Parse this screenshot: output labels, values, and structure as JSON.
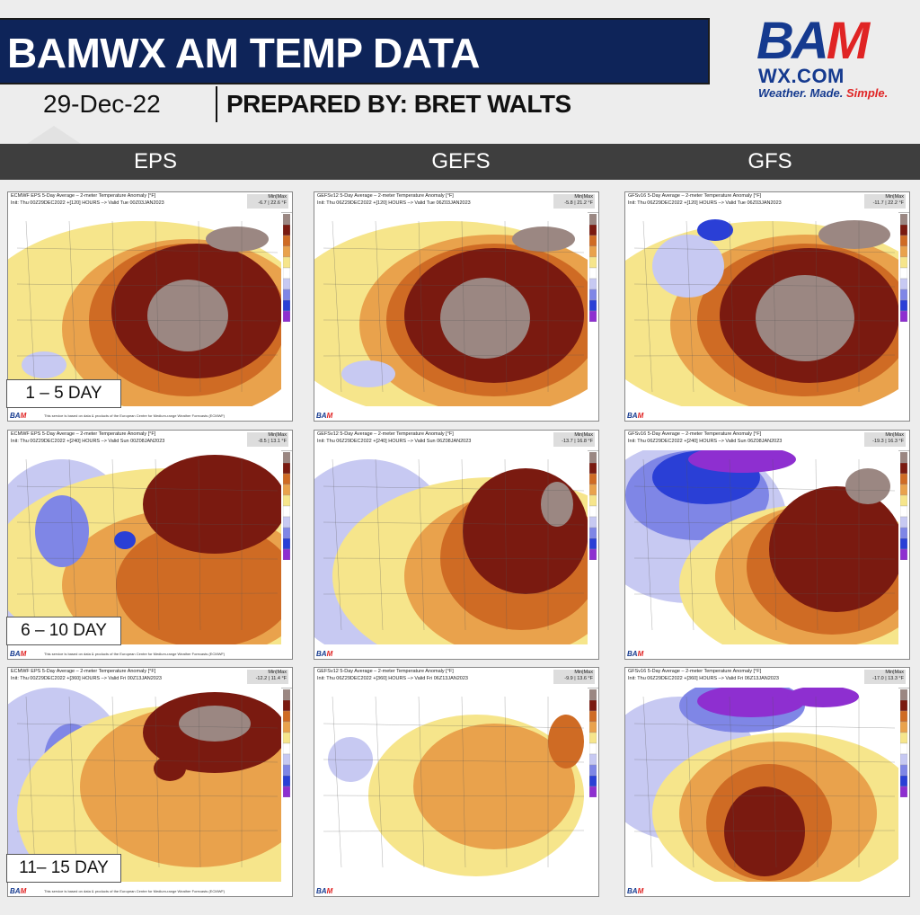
{
  "header": {
    "title": "BAMWX AM TEMP DATA",
    "date": "29-Dec-22",
    "prepared_by": "PREPARED BY: BRET WALTS"
  },
  "logo": {
    "bam": "BA",
    "m": "M",
    "wx": "WX.COM",
    "tag_a": "Weather. Made. ",
    "tag_b": "Simple."
  },
  "columns": [
    "EPS",
    "GEFS",
    "GFS"
  ],
  "row_labels": [
    "1 – 5 DAY",
    "6 – 10 DAY",
    "11– 15 DAY"
  ],
  "panels": [
    {
      "l1": "ECMWF EPS 5-Day Average – 2-meter Temperature Anomaly [°F]",
      "l2": "Init: Thu 00Z29DEC2022 +[120] HOURS –> Valid Tue 00Z03JAN2023",
      "mm": "-6.7 | 22.6 °F"
    },
    {
      "l1": "GEFSv12 5-Day Average – 2-meter Temperature Anomaly [°F]",
      "l2": "Init: Thu 06Z29DEC2022 +[120] HOURS –> Valid Tue 06Z03JAN2023",
      "mm": "-5.8 | 21.2 °F"
    },
    {
      "l1": "GFSv16 5-Day Average – 2-meter Temperature Anomaly [°F]",
      "l2": "Init: Thu 06Z29DEC2022 +[120] HOURS –> Valid Tue 06Z03JAN2023",
      "mm": "-11.7 | 22.2 °F"
    },
    {
      "l1": "ECMWF EPS 5-Day Average – 2-meter Temperature Anomaly [°F]",
      "l2": "Init: Thu 00Z29DEC2022 +[240] HOURS –> Valid Sun 00Z08JAN2023",
      "mm": "-8.5 | 13.1 °F"
    },
    {
      "l1": "GEFSv12 5-Day Average – 2-meter Temperature Anomaly [°F]",
      "l2": "Init: Thu 06Z29DEC2022 +[240] HOURS –> Valid Sun 06Z08JAN2023",
      "mm": "-13.7 | 16.8 °F"
    },
    {
      "l1": "GFSv16 5-Day Average – 2-meter Temperature Anomaly [°F]",
      "l2": "Init: Thu 06Z29DEC2022 +[240] HOURS –> Valid Sun 06Z08JAN2023",
      "mm": "-19.3 | 16.3 °F"
    },
    {
      "l1": "ECMWF EPS 5-Day Average – 2-meter Temperature Anomaly [°F]",
      "l2": "Init: Thu 00Z29DEC2022 +[360] HOURS –> Valid Fri 00Z13JAN2023",
      "mm": "-12.2 | 11.4 °F"
    },
    {
      "l1": "GEFSv12 5-Day Average – 2-meter Temperature Anomaly [°F]",
      "l2": "Init: Thu 06Z29DEC2022 +[360] HOURS –> Valid Fri 06Z13JAN2023",
      "mm": "-9.9 | 13.6 °F"
    },
    {
      "l1": "GFSv16 5-Day Average – 2-meter Temperature Anomaly [°F]",
      "l2": "Init: Thu 06Z29DEC2022 +[360] HOURS –> Valid Fri 06Z13JAN2023",
      "mm": "-17.0 | 13.3 °F"
    }
  ],
  "panel_common": {
    "minmax_label": "Min|Max",
    "foot_note": "This service is based on data & products of the European Centre for Medium-range Weather Forecasts (ECMWF)"
  },
  "colors": {
    "navy": "#0e2459",
    "brand_red": "#e02424",
    "brand_blue": "#153a8f",
    "anom_purple": "#8e2fd0",
    "anom_dblue": "#2a3fd6",
    "anom_blue": "#7f86e6",
    "anom_lblue": "#c7c9f2",
    "anom_white": "#ffffff",
    "anom_yellow": "#f6e58b",
    "anom_orange": "#e9a24c",
    "anom_dorange": "#cf6b24",
    "anom_red": "#7a1a10",
    "anom_gray": "#9b8782"
  }
}
